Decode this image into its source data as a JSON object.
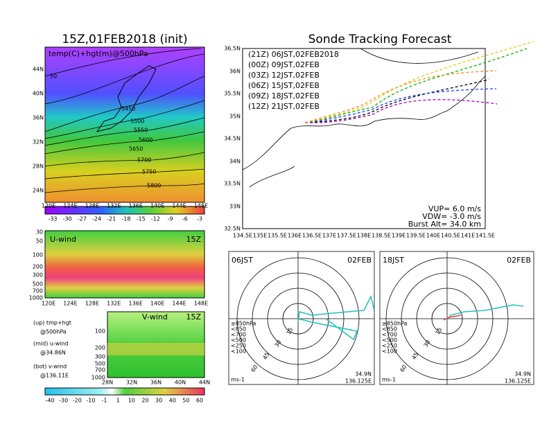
{
  "title_left": "15Z,01FEB2018 (init)",
  "title_right": "Sonde Tracking Forecast",
  "map_panel": {
    "label": "temp(C)+hgt(m)@500hPa",
    "contours": [
      "50",
      "5450",
      "5500",
      "5550",
      "5600",
      "5650",
      "5700",
      "5750",
      "5800"
    ],
    "xticks": [
      "120E",
      "124E",
      "128E",
      "132E",
      "136E",
      "140E",
      "144E",
      "148E"
    ],
    "yticks": [
      "44N",
      "40N",
      "36N",
      "32N",
      "28N",
      "24N"
    ]
  },
  "temp_colorbar": [
    "-33",
    "-30",
    "-27",
    "-24",
    "-21",
    "-18",
    "-15",
    "-12",
    "-9",
    "-6",
    "-3"
  ],
  "uwind": {
    "label": "U-wind",
    "time": "15Z",
    "yticks": [
      "30",
      "50",
      "100",
      "200",
      "300",
      "500",
      "700",
      "1000"
    ],
    "xticks": [
      "120E",
      "124E",
      "128E",
      "132E",
      "136E",
      "140E",
      "144E",
      "148E"
    ]
  },
  "vwind": {
    "label": "V-wind",
    "time": "15Z",
    "yticks": [
      "100",
      "200",
      "300",
      "500",
      "700",
      "1000"
    ],
    "xticks": [
      "28N",
      "32N",
      "36N",
      "40N",
      "44N"
    ]
  },
  "notes": [
    "(up) tmp+hgt",
    "@500hPa",
    "(mid) u-wind",
    "@34.86N",
    "(bot) v-wind",
    "@136.11E"
  ],
  "wind_colorbar": [
    "-40",
    "-30",
    "-20",
    "-10",
    "-1",
    "1",
    "10",
    "20",
    "30",
    "40",
    "50",
    "60"
  ],
  "track": {
    "legend": [
      "(21Z) 06JST,02FEB2018",
      "(00Z) 09JST,02FEB",
      "(03Z) 12JST,02FEB",
      "(06Z) 15JST,02FEB",
      "(09Z) 18JST,02FEB",
      "(12Z) 21JST,02FEB"
    ],
    "colors": [
      "#000000",
      "#a000c0",
      "#1e3cff",
      "#00b400",
      "#e6c800",
      "#f08c28"
    ],
    "xticks": [
      "134.5E",
      "135E",
      "135.5E",
      "136E",
      "136.5E",
      "137E",
      "137.5E",
      "138E",
      "138.5E",
      "139E",
      "139.5E",
      "140E",
      "140.5E",
      "141E",
      "141.5E"
    ],
    "yticks": [
      "36.5N",
      "36N",
      "35.5N",
      "35N",
      "34.5N",
      "34N",
      "33.5N",
      "33N",
      "32.5N"
    ],
    "params": [
      "VUP=  6.0 m/s",
      "VDW= -3.0 m/s",
      "Burst Alt= 34.0 km"
    ]
  },
  "hodographs": [
    {
      "time": "06JST",
      "date": "02FEB",
      "rings": [
        "15",
        "30",
        "45",
        "60"
      ],
      "levels": [
        "≥850hPa",
        "<850",
        "<700",
        "<500",
        "<250",
        "<100"
      ],
      "location": [
        "34.9N",
        "136.125E"
      ],
      "unit": "ms-1"
    },
    {
      "time": "18JST",
      "date": "02FEB",
      "rings": [
        "15",
        "30",
        "45",
        "60"
      ],
      "levels": [
        "≥850hPa",
        "<850",
        "<700",
        "<500",
        "<250",
        "<100"
      ],
      "location": [
        "34.9N",
        "136.125E"
      ],
      "unit": "ms-1"
    }
  ]
}
